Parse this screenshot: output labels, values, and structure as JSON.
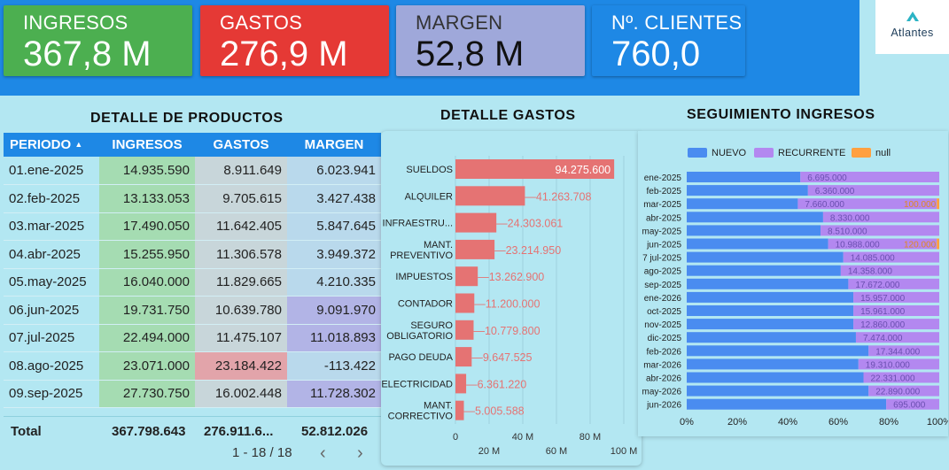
{
  "kpis": [
    {
      "label": "INGRESOS",
      "value": "367,8 M",
      "color": "#4caf50"
    },
    {
      "label": "GASTOS",
      "value": "276,9 M",
      "color": "#e53935"
    },
    {
      "label": "MARGEN",
      "value": "52,8 M",
      "color": "#9fa8da"
    },
    {
      "label": "Nº. CLIENTES",
      "value": "760,0",
      "color": "#1e88e5"
    }
  ],
  "logo": {
    "text": "Atlantes"
  },
  "product_table": {
    "title": "DETALLE DE PRODUCTOS",
    "headers": {
      "periodo": "PERIODO",
      "ingresos": "INGRESOS",
      "gastos": "GASTOS",
      "margen": "MARGEN"
    },
    "sort_icon": "sort-asc-icon",
    "rows": [
      {
        "periodo": "01.ene-2025",
        "ingresos": "14.935.590",
        "gastos": "8.911.649",
        "margen": "6.023.941"
      },
      {
        "periodo": "02.feb-2025",
        "ingresos": "13.133.053",
        "gastos": "9.705.615",
        "margen": "3.427.438"
      },
      {
        "periodo": "03.mar-2025",
        "ingresos": "17.490.050",
        "gastos": "11.642.405",
        "margen": "5.847.645"
      },
      {
        "periodo": "04.abr-2025",
        "ingresos": "15.255.950",
        "gastos": "11.306.578",
        "margen": "3.949.372"
      },
      {
        "periodo": "05.may-2025",
        "ingresos": "16.040.000",
        "gastos": "11.829.665",
        "margen": "4.210.335"
      },
      {
        "periodo": "06.jun-2025",
        "ingresos": "19.731.750",
        "gastos": "10.639.780",
        "margen": "9.091.970"
      },
      {
        "periodo": "07.jul-2025",
        "ingresos": "22.494.000",
        "gastos": "11.475.107",
        "margen": "11.018.893"
      },
      {
        "periodo": "08.ago-2025",
        "ingresos": "23.071.000",
        "gastos": "23.184.422",
        "margen": "-113.422"
      },
      {
        "periodo": "09.sep-2025",
        "ingresos": "27.730.750",
        "gastos": "16.002.448",
        "margen": "11.728.302"
      }
    ],
    "total": {
      "label": "Total",
      "ingresos": "367.798.643",
      "gastos": "276.911.6...",
      "margen": "52.812.026"
    },
    "pager": {
      "text": "1 - 18 / 18",
      "prev_icon": "chevron-left-icon",
      "next_icon": "chevron-right-icon"
    }
  },
  "chart_data": [
    {
      "type": "bar",
      "title": "DETALLE GASTOS",
      "orientation": "horizontal",
      "categories": [
        "SUELDOS",
        "ALQUILER",
        "INFRAESTRU...",
        "MANT. PREVENTIVO",
        "IMPUESTOS",
        "CONTADOR",
        "SEGURO OBLIGATORIO",
        "PAGO DEUDA",
        "ELECTRICIDAD",
        "MANT. CORRECTIVO"
      ],
      "values": [
        94275600,
        41263708,
        24303061,
        23214950,
        13262900,
        11200000,
        10779800,
        9647525,
        6361220,
        5005588
      ],
      "value_labels": [
        "94.275.600",
        "41.263.708",
        "24.303.061",
        "23.214.950",
        "13.262.900",
        "11.200.000",
        "10.779.800",
        "9.647.525",
        "6.361.220",
        "5.005.588"
      ],
      "xlim": [
        0,
        100000000
      ],
      "ticks_top": [
        "0",
        "40 M",
        "80 M"
      ],
      "ticks_bottom": [
        "20 M",
        "60 M",
        "100 M"
      ],
      "bar_color": "#e57373",
      "grid": true
    },
    {
      "type": "bar",
      "title": "SEGUIMIENTO INGRESOS",
      "orientation": "horizontal",
      "stacked": "percent",
      "legend": [
        "NUEVO",
        "RECURRENTE",
        "null"
      ],
      "legend_colors": [
        "#4a8cf0",
        "#b388f0",
        "#ffa040"
      ],
      "legend_position": "top",
      "categories": [
        "ene-2025",
        "feb-2025",
        "mar-2025",
        "abr-2025",
        "may-2025",
        "jun-2025",
        "7 jul-2025",
        "ago-2025",
        "sep-2025",
        "ene-2026",
        "oct-2025",
        "nov-2025",
        "dic-2025",
        "feb-2026",
        "mar-2026",
        "abr-2026",
        "may-2026",
        "jun-2026"
      ],
      "series": [
        {
          "name": "NUEVO",
          "values": [
            0.45,
            0.48,
            0.44,
            0.54,
            0.53,
            0.56,
            0.62,
            0.61,
            0.64,
            0.66,
            0.66,
            0.66,
            0.67,
            0.72,
            0.68,
            0.7,
            0.72,
            0.79
          ]
        },
        {
          "name": "RECURRENTE",
          "values": [
            0.55,
            0.52,
            0.55,
            0.46,
            0.47,
            0.43,
            0.38,
            0.39,
            0.36,
            0.34,
            0.34,
            0.34,
            0.33,
            0.28,
            0.32,
            0.3,
            0.28,
            0.21
          ]
        },
        {
          "name": "null",
          "values": [
            0,
            0,
            0.01,
            0,
            0,
            0.01,
            0,
            0,
            0,
            0,
            0,
            0,
            0,
            0,
            0,
            0,
            0,
            0
          ]
        }
      ],
      "value_labels": [
        "6.695.000",
        "6.360.000",
        "7.660.000",
        "8.330.000",
        "8.510.000",
        "10.988.000",
        "14.085.000",
        "14.358.000",
        "17.672.000",
        "15.957.000",
        "15.961.000",
        "12.860.000",
        "7.474.000",
        "17.344.000",
        "19.310.000",
        "22.331.000",
        "22.890.000",
        "695.000"
      ],
      "null_labels": [
        "",
        "",
        "100.000",
        "",
        "",
        "120.000",
        "",
        "",
        "",
        "",
        "",
        "",
        "",
        "",
        "",
        "",
        "",
        ""
      ],
      "xticks": [
        "0%",
        "20%",
        "40%",
        "60%",
        "80%",
        "100%"
      ]
    }
  ]
}
